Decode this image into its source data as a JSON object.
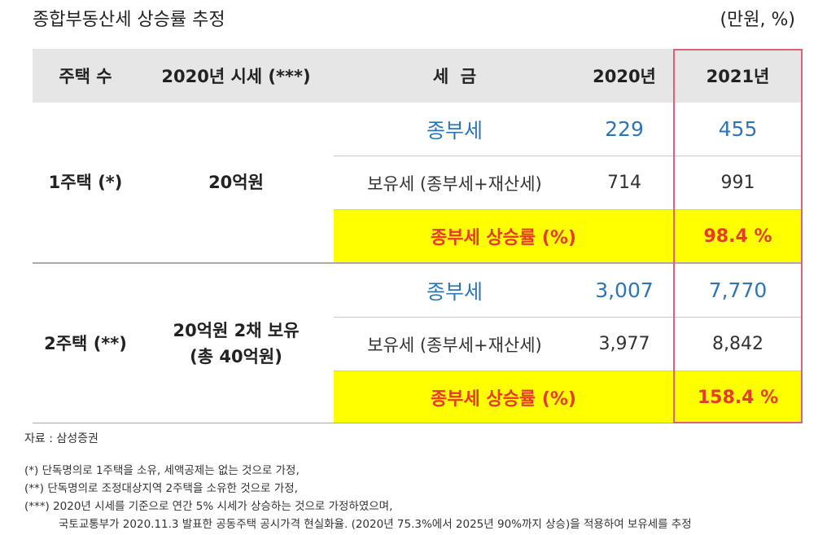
{
  "title": "종합부동산세 상승률 추정",
  "unit": "(만원, %)",
  "headers": [
    "주택 수",
    "2020년 시세 (***)",
    "세  금",
    "2020년",
    "2021년"
  ],
  "groups": [
    {
      "houses": "1주택 (*)",
      "price_lines": [
        "20억원"
      ],
      "tax_label": "종부세",
      "tax_2020": "229",
      "tax_2021": "455",
      "hold_label": "보유세 (종부세+재산세)",
      "hold_2020": "714",
      "hold_2021": "991",
      "rate_label": "종부세 상승률 (%)",
      "rate": "98.4 %"
    },
    {
      "houses": "2주택 (**)",
      "price_lines": [
        "20억원 2채 보유",
        "(총 40억원)"
      ],
      "tax_label": "종부세",
      "tax_2020": "3,007",
      "tax_2021": "7,770",
      "hold_label": "보유세 (종부세+재산세)",
      "hold_2020": "3,977",
      "hold_2021": "8,842",
      "rate_label": "종부세 상승률 (%)",
      "rate": "158.4 %"
    }
  ],
  "source": "자료 : 삼성증권",
  "notes": [
    "(*) 단독명의로 1주택을 소유, 세액공제는 없는 것으로 가정,",
    "(**) 단독명의로 조정대상지역 2주택을 소유한 것으로 가정,",
    "(***) 2020년 시세를 기준으로 연간 5% 시세가 상승하는 것으로 가정하였으며,",
    "국토교통부가 2020.11.3 발표한 공동주택 공시가격 현실화율. (2020년 75.3%에서 2025년 90%까지 상승)을 적용하여 보유세를 추정"
  ],
  "colors": {
    "header_bg": "#e6e6e6",
    "highlight": "#ffff00",
    "rate_text": "#e8392a",
    "tax_text": "#2e75b6",
    "frame": "#e0607a"
  }
}
